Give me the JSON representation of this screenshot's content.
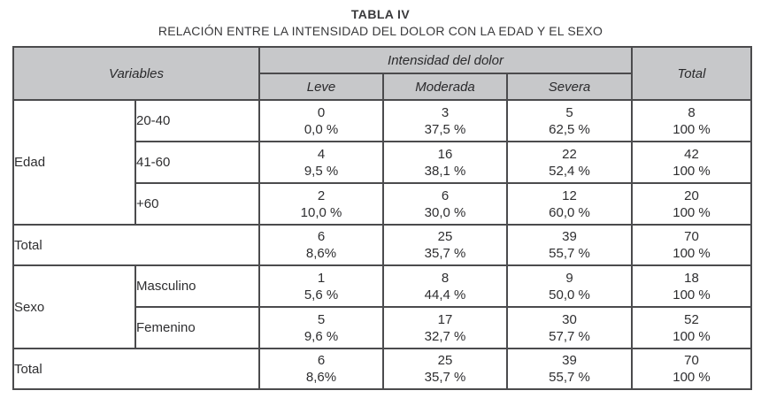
{
  "title": "TABLA IV",
  "subtitle": "RELACIÓN ENTRE LA INTENSIDAD DEL DOLOR CON LA EDAD Y EL SEXO",
  "colors": {
    "header_bg": "#c7c8ca",
    "border": "#4b4b4d",
    "text": "#2e2e30"
  },
  "header": {
    "variables": "Variables",
    "intensity": "Intensidad del dolor",
    "levels": [
      "Leve",
      "Moderada",
      "Severa"
    ],
    "total": "Total"
  },
  "sections": [
    {
      "group": "Edad",
      "rows": [
        {
          "label": "20-40",
          "cells": [
            {
              "n": "0",
              "pct": "0,0 %"
            },
            {
              "n": "3",
              "pct": "37,5 %"
            },
            {
              "n": "5",
              "pct": "62,5 %"
            },
            {
              "n": "8",
              "pct": "100 %"
            }
          ]
        },
        {
          "label": "41-60",
          "cells": [
            {
              "n": "4",
              "pct": "9,5 %"
            },
            {
              "n": "16",
              "pct": "38,1 %"
            },
            {
              "n": "22",
              "pct": "52,4 %"
            },
            {
              "n": "42",
              "pct": "100 %"
            }
          ]
        },
        {
          "label": "+60",
          "cells": [
            {
              "n": "2",
              "pct": "10,0 %"
            },
            {
              "n": "6",
              "pct": "30,0 %"
            },
            {
              "n": "12",
              "pct": "60,0 %"
            },
            {
              "n": "20",
              "pct": "100 %"
            }
          ]
        }
      ],
      "total": {
        "label": "Total",
        "cells": [
          {
            "n": "6",
            "pct": "8,6%"
          },
          {
            "n": "25",
            "pct": "35,7 %"
          },
          {
            "n": "39",
            "pct": "55,7 %"
          },
          {
            "n": "70",
            "pct": "100 %"
          }
        ]
      }
    },
    {
      "group": "Sexo",
      "rows": [
        {
          "label": "Masculino",
          "cells": [
            {
              "n": "1",
              "pct": "5,6 %"
            },
            {
              "n": "8",
              "pct": "44,4 %"
            },
            {
              "n": "9",
              "pct": "50,0 %"
            },
            {
              "n": "18",
              "pct": "100 %"
            }
          ]
        },
        {
          "label": "Femenino",
          "cells": [
            {
              "n": "5",
              "pct": "9,6 %"
            },
            {
              "n": "17",
              "pct": "32,7 %"
            },
            {
              "n": "30",
              "pct": "57,7 %"
            },
            {
              "n": "52",
              "pct": "100 %"
            }
          ]
        }
      ],
      "total": {
        "label": "Total",
        "cells": [
          {
            "n": "6",
            "pct": "8,6%"
          },
          {
            "n": "25",
            "pct": "35,7 %"
          },
          {
            "n": "39",
            "pct": "55,7 %"
          },
          {
            "n": "70",
            "pct": "100 %"
          }
        ]
      }
    }
  ]
}
